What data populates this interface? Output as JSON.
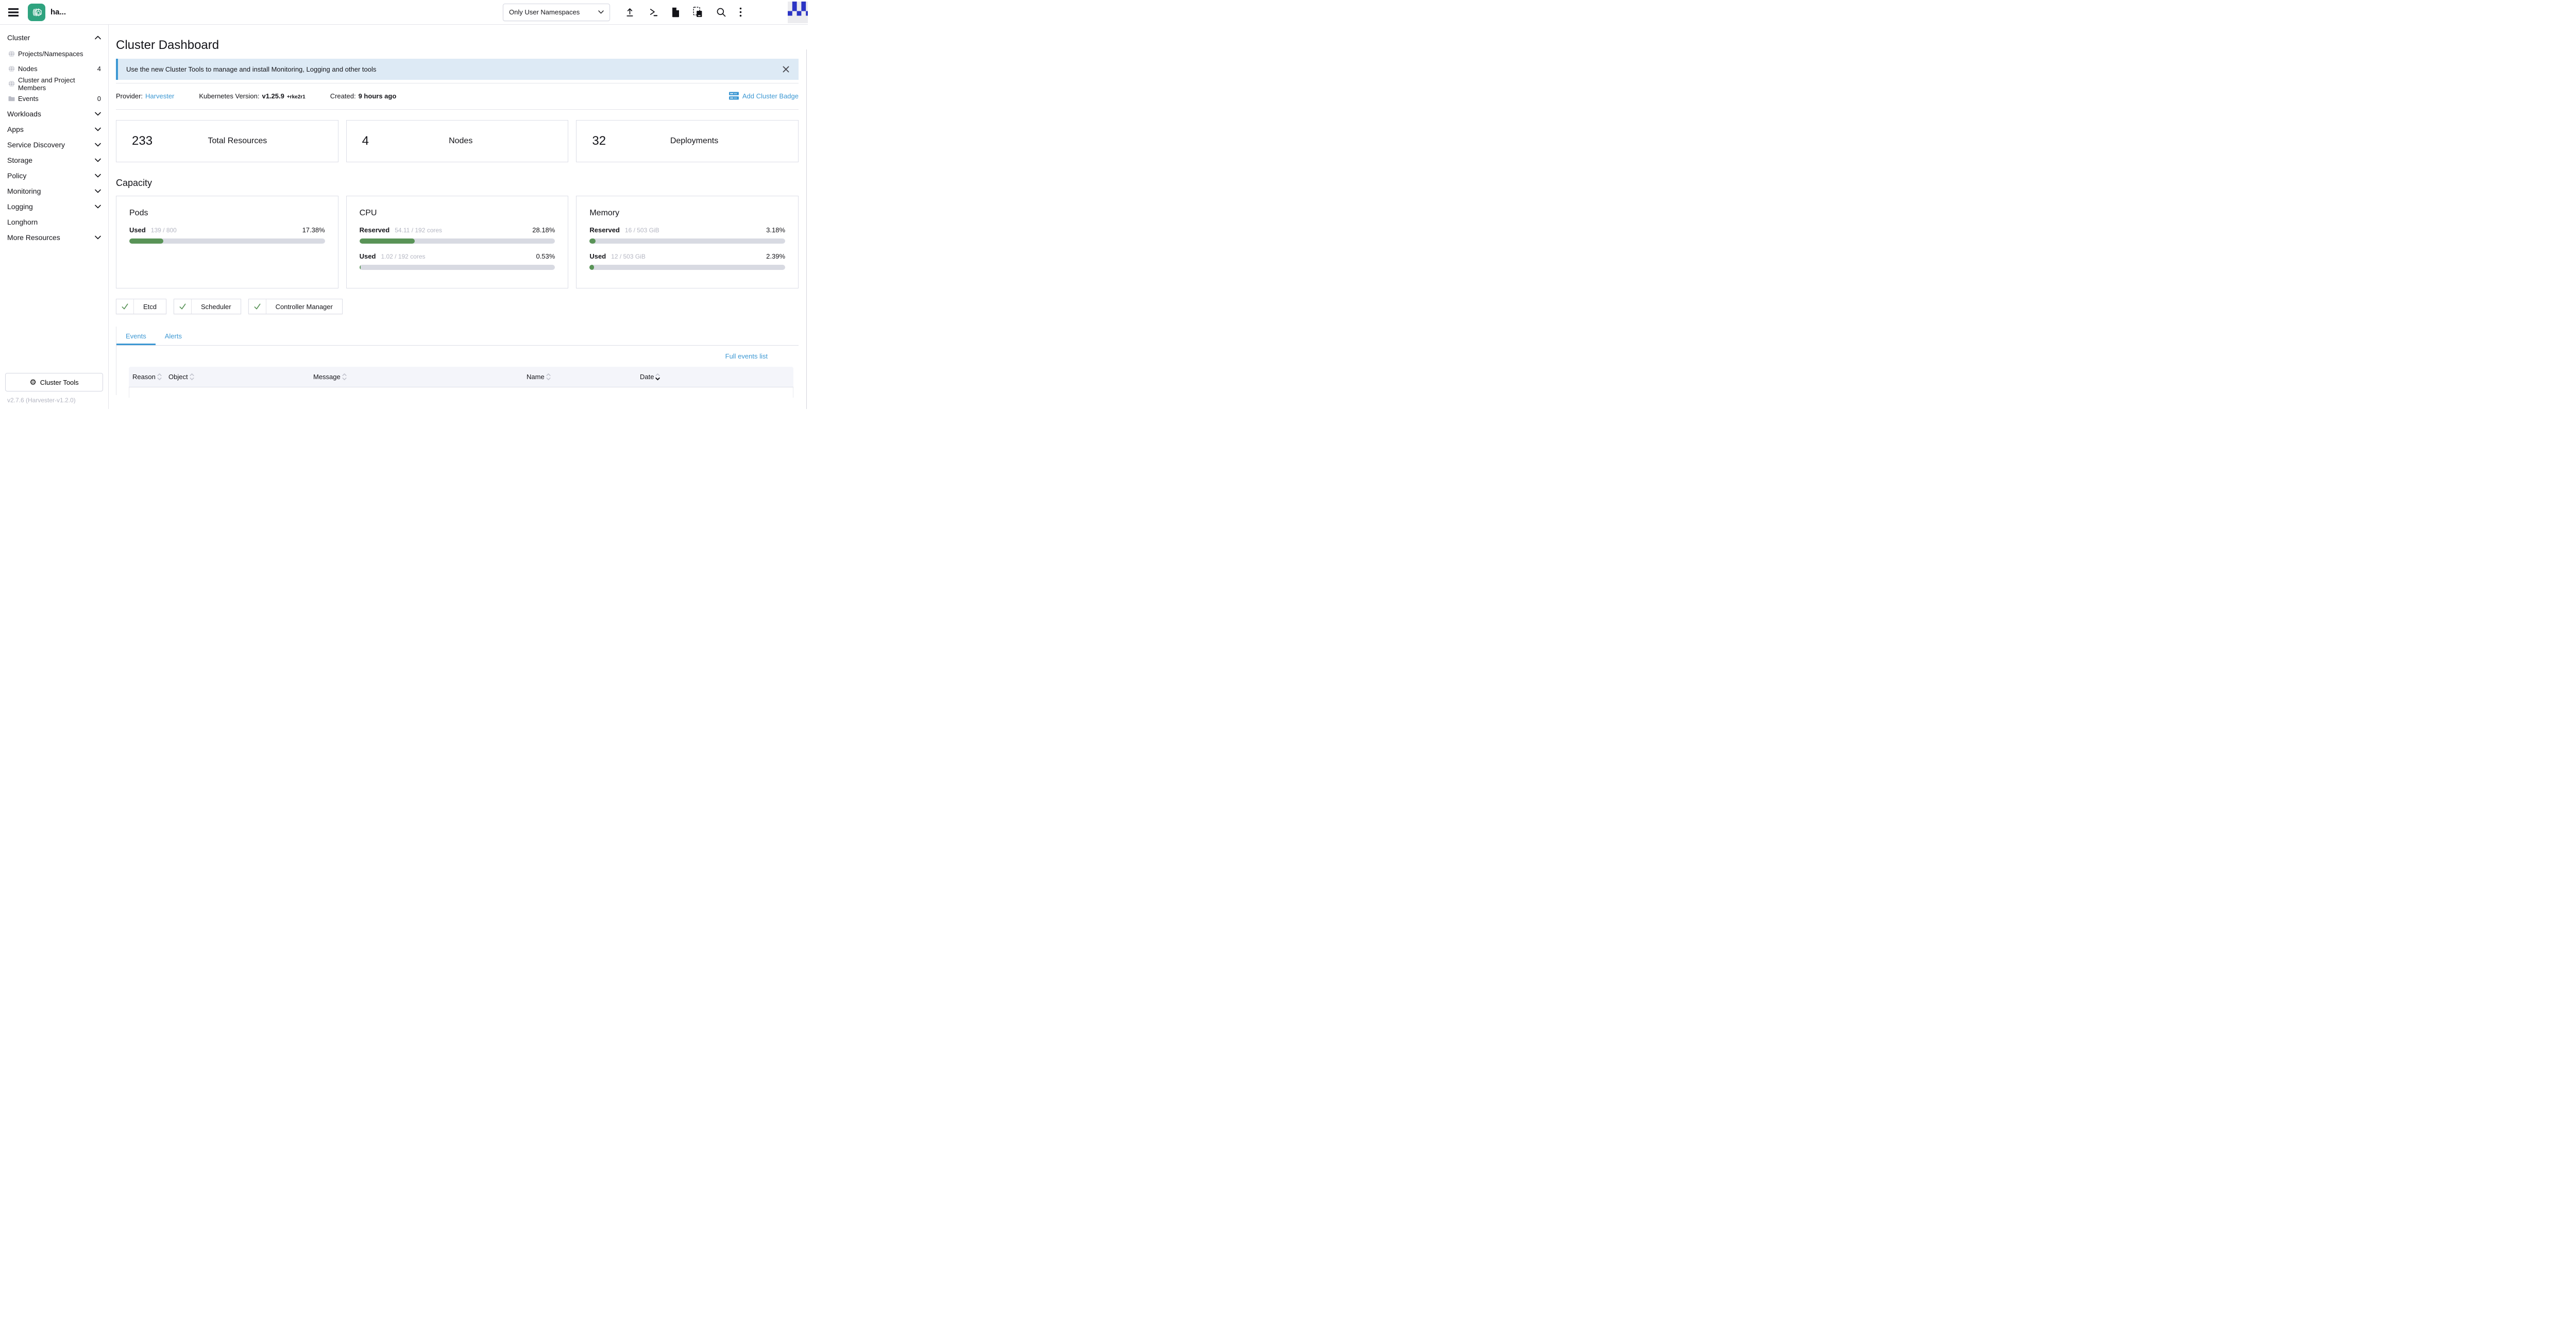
{
  "colors": {
    "accent_blue": "#3d98d3",
    "logo_green": "#2fa37f",
    "progress_green": "#599357",
    "banner_bg": "#ddeaf5",
    "avatar_blue": "#2b34c4"
  },
  "topbar": {
    "app_name": "ha...",
    "namespace_filter": "Only User Namespaces",
    "icons": [
      "hamburger-icon",
      "upload-icon",
      "shell-icon",
      "file-icon",
      "copy-icon",
      "search-icon",
      "kebab-menu-icon",
      "avatar"
    ]
  },
  "sidebar": {
    "cluster_header": "Cluster",
    "cluster_items": [
      {
        "label": "Projects/Namespaces"
      },
      {
        "label": "Nodes",
        "count": "4"
      },
      {
        "label": "Cluster and Project Members"
      },
      {
        "label": "Events",
        "count": "0"
      }
    ],
    "sections": [
      "Workloads",
      "Apps",
      "Service Discovery",
      "Storage",
      "Policy",
      "Monitoring",
      "Logging",
      "Longhorn",
      "More Resources"
    ],
    "cluster_tools_label": "Cluster Tools",
    "version": "v2.7.6 (Harvester-v1.2.0)"
  },
  "main": {
    "title": "Cluster Dashboard",
    "banner_text": "Use the new Cluster Tools to manage and install Monitoring, Logging and other tools",
    "meta": {
      "provider_label": "Provider:",
      "provider_value": "Harvester",
      "k8s_label": "Kubernetes Version:",
      "k8s_value": "v1.25.9",
      "k8s_suffix": "+rke2r1",
      "created_label": "Created:",
      "created_value": "9 hours ago",
      "add_badge_label": "Add Cluster Badge"
    },
    "stats": [
      {
        "value": "233",
        "label": "Total Resources"
      },
      {
        "value": "4",
        "label": "Nodes"
      },
      {
        "value": "32",
        "label": "Deployments"
      }
    ],
    "capacity": {
      "heading": "Capacity",
      "pods": {
        "title": "Pods",
        "used_label": "Used",
        "used_fraction": "139 / 800",
        "used_percent": "17.38%",
        "used_value": 17.38
      },
      "cpu": {
        "title": "CPU",
        "reserved_label": "Reserved",
        "reserved_fraction": "54.11 / 192 cores",
        "reserved_percent": "28.18%",
        "reserved_value": 28.18,
        "used_label": "Used",
        "used_fraction": "1.02 / 192 cores",
        "used_percent": "0.53%",
        "used_value": 0.53
      },
      "memory": {
        "title": "Memory",
        "reserved_label": "Reserved",
        "reserved_fraction": "16 / 503 GiB",
        "reserved_percent": "3.18%",
        "reserved_value": 3.18,
        "used_label": "Used",
        "used_fraction": "12 / 503 GiB",
        "used_percent": "2.39%",
        "used_value": 2.39
      }
    },
    "components": [
      {
        "label": "Etcd"
      },
      {
        "label": "Scheduler"
      },
      {
        "label": "Controller Manager"
      }
    ],
    "tabs": [
      {
        "label": "Events"
      },
      {
        "label": "Alerts"
      }
    ],
    "full_events_link": "Full events list",
    "table": {
      "columns": [
        "Reason",
        "Object",
        "Message",
        "Name",
        "Date"
      ]
    }
  }
}
